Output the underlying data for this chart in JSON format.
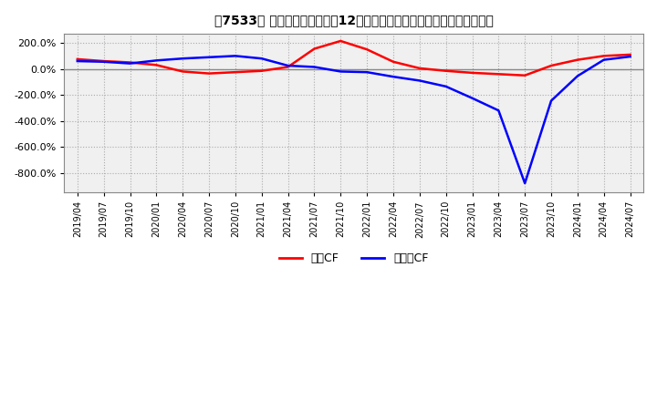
{
  "title": "　7533、 キャッシュフローの12か月移動合計の対前年同期増減率の推移",
  "title_prefix": "　7533、",
  "title_main": "キャッシュフローの12か月移動合計の対前年同期増減率の推移",
  "legend_labels": [
    "営業CF",
    "フリーCF"
  ],
  "line_colors": [
    "#ff0000",
    "#0000ff"
  ],
  "background_color": "#ffffff",
  "plot_bg_color": "#f0f0f0",
  "grid_color": "#aaaaaa",
  "ylim": [
    -950,
    270
  ],
  "yticks": [
    200,
    0,
    -200,
    -400,
    -600,
    -800
  ],
  "x_labels": [
    "2019/04",
    "2019/07",
    "2019/10",
    "2020/01",
    "2020/04",
    "2020/07",
    "2020/10",
    "2021/01",
    "2021/04",
    "2021/07",
    "2021/10",
    "2022/01",
    "2022/04",
    "2022/07",
    "2022/10",
    "2023/01",
    "2023/04",
    "2023/07",
    "2023/10",
    "2024/01",
    "2024/04",
    "2024/07"
  ],
  "eigyo_cf": [
    75,
    60,
    50,
    30,
    -20,
    -35,
    -25,
    -15,
    15,
    155,
    215,
    150,
    55,
    5,
    -15,
    -30,
    -40,
    -50,
    25,
    70,
    100,
    110
  ],
  "free_cf": [
    60,
    55,
    42,
    65,
    80,
    90,
    100,
    80,
    25,
    15,
    -20,
    -25,
    -60,
    -90,
    -135,
    -225,
    -320,
    -880,
    -245,
    -55,
    70,
    95
  ]
}
